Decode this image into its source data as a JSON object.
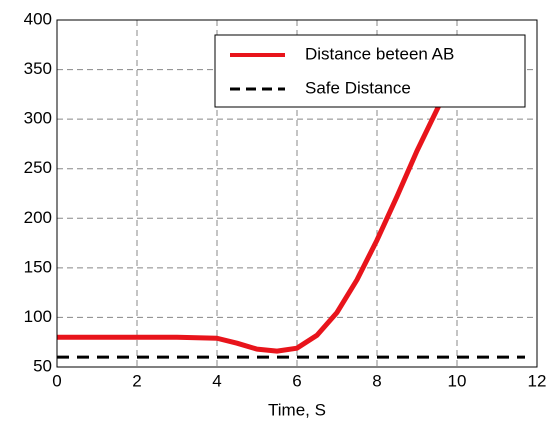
{
  "chart_data": {
    "type": "line",
    "x_label": "Time, S",
    "series": [
      {
        "name": "Distance beteen AB",
        "color": "#e8141b",
        "dash": false,
        "x": [
          0,
          1,
          2,
          3,
          4,
          4.5,
          5,
          5.5,
          6,
          6.5,
          7,
          7.5,
          8,
          8.5,
          9,
          9.6
        ],
        "values": [
          80,
          80,
          80,
          80,
          79,
          74,
          68,
          66,
          69,
          82,
          105,
          138,
          178,
          222,
          268,
          318
        ]
      },
      {
        "name": "Safe Distance",
        "color": "#000000",
        "dash": true,
        "x": [
          0,
          11.7
        ],
        "values": [
          60,
          60
        ]
      }
    ],
    "xlim": [
      0,
      12
    ],
    "xticks": [
      0,
      2,
      4,
      6,
      8,
      10,
      12
    ],
    "ylim": [
      50,
      400
    ],
    "yticks": [
      50,
      100,
      150,
      200,
      250,
      300,
      350,
      400
    ],
    "grid": true,
    "legend": "upper right"
  }
}
